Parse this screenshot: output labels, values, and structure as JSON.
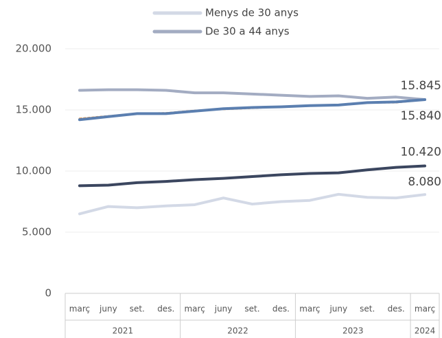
{
  "chart_data": {
    "type": "line",
    "categories": [
      "març",
      "juny",
      "set.",
      "des.",
      "març",
      "juny",
      "set.",
      "des.",
      "març",
      "juny",
      "set.",
      "des.",
      "març"
    ],
    "groups": [
      {
        "label": "2021",
        "span": 4
      },
      {
        "label": "2022",
        "span": 4
      },
      {
        "label": "2023",
        "span": 4
      },
      {
        "label": "2024",
        "span": 1
      }
    ],
    "series": [
      {
        "name": "Menys de 30 anys",
        "color": "#d3d9e6",
        "values": [
          6500,
          7100,
          7000,
          7150,
          7250,
          7800,
          7300,
          7500,
          7600,
          8100,
          7850,
          7800,
          8080
        ],
        "value_labels": [
          null,
          null,
          null,
          null,
          null,
          null,
          null,
          null,
          null,
          null,
          null,
          null,
          "8.080"
        ]
      },
      {
        "name": "De 30 a 44 anys",
        "color": "#a3acc2",
        "values": [
          16600,
          16650,
          16650,
          16600,
          16400,
          16400,
          16300,
          16200,
          16100,
          16150,
          15950,
          16050,
          15845
        ],
        "value_labels": [
          null,
          null,
          null,
          null,
          null,
          null,
          null,
          null,
          null,
          null,
          null,
          null,
          "15.845"
        ]
      },
      {
        "color": "#3b465f",
        "values": [
          8800,
          8850,
          9050,
          9150,
          9300,
          9400,
          9550,
          9700,
          9800,
          9850,
          10100,
          10300,
          10420
        ],
        "value_labels": [
          null,
          null,
          null,
          null,
          null,
          null,
          null,
          null,
          null,
          null,
          null,
          null,
          "10.420"
        ]
      },
      {
        "color": "#e0a060",
        "dashed": true,
        "values": [
          14300,
          14500,
          14700,
          14750,
          14950,
          15050,
          15150,
          15250,
          15350,
          15400,
          15600,
          15600,
          15830
        ]
      },
      {
        "color": "#5b7fb0",
        "values": [
          14200,
          14450,
          14700,
          14700,
          14900,
          15100,
          15200,
          15250,
          15350,
          15400,
          15600,
          15650,
          15840
        ],
        "value_labels": [
          null,
          null,
          null,
          null,
          null,
          null,
          null,
          null,
          null,
          null,
          null,
          null,
          "15.840"
        ]
      }
    ],
    "legend_series": [
      0,
      1
    ],
    "ylim": [
      0,
      20000
    ],
    "yticks": [
      0,
      {
        "value": 5000,
        "label": "5.000"
      },
      {
        "value": 10000,
        "label": "10.000"
      },
      {
        "value": 15000,
        "label": "15.000"
      },
      {
        "value": 20000,
        "label": "20.000"
      }
    ],
    "grid": true
  }
}
